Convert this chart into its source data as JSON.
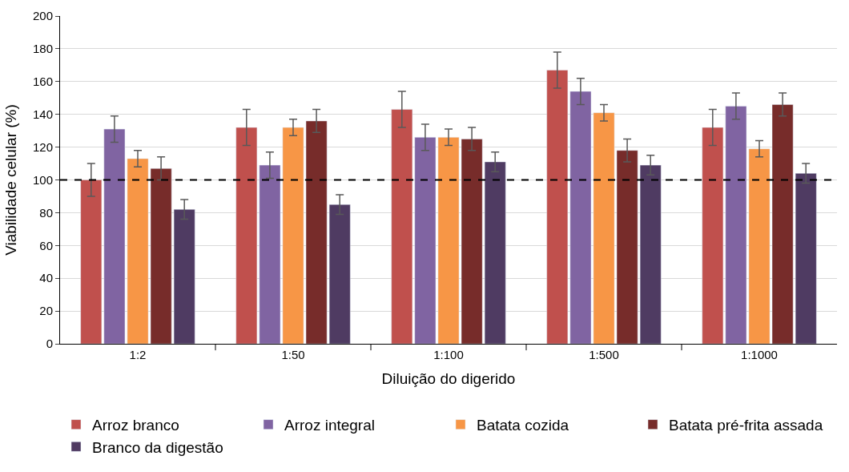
{
  "chart_data": {
    "type": "bar",
    "xlabel": "Diluição do digerido",
    "ylabel": "Viabilidade celular (%)",
    "categories": [
      "1:2",
      "1:50",
      "1:100",
      "1:500",
      "1:1000"
    ],
    "series": [
      {
        "name": "Arroz branco",
        "color": "#c0504d",
        "values": [
          100,
          132,
          143,
          167,
          132
        ],
        "errors": [
          10,
          11,
          11,
          11,
          11
        ]
      },
      {
        "name": "Arroz integral",
        "color": "#8064a2",
        "values": [
          131,
          109,
          126,
          154,
          145
        ],
        "errors": [
          8,
          8,
          8,
          8,
          8
        ]
      },
      {
        "name": "Batata cozida",
        "color": "#f79646",
        "values": [
          113,
          132,
          126,
          141,
          119
        ],
        "errors": [
          5,
          5,
          5,
          5,
          5
        ]
      },
      {
        "name": "Batata pré-frita assada",
        "color": "#772c2a",
        "values": [
          107,
          136,
          125,
          118,
          146
        ],
        "errors": [
          7,
          7,
          7,
          7,
          7
        ]
      },
      {
        "name": "Branco da digestão",
        "color": "#4f3b62",
        "values": [
          82,
          85,
          111,
          109,
          104
        ],
        "errors": [
          6,
          6,
          6,
          6,
          6
        ]
      }
    ],
    "ylim": [
      0,
      200
    ],
    "yticks": [
      0,
      20,
      40,
      60,
      80,
      100,
      120,
      140,
      160,
      180,
      200
    ],
    "grid": "y",
    "legend": "bottom",
    "ref_lines": [
      {
        "axis": "y",
        "value": 100,
        "color": "#000000",
        "line_style": "dashed"
      }
    ]
  }
}
